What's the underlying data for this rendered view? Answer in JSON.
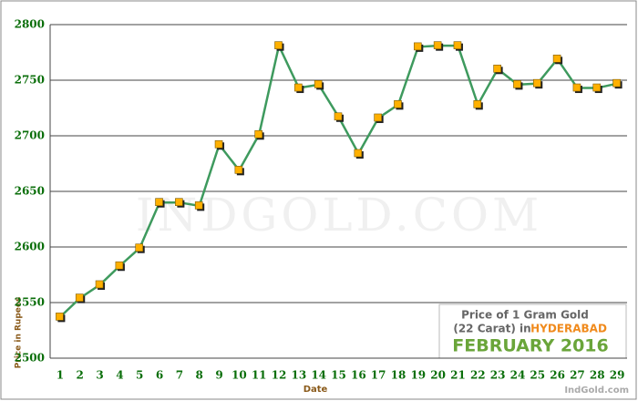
{
  "chart_data": {
    "type": "line",
    "categories": [
      "1",
      "2",
      "3",
      "4",
      "5",
      "6",
      "7",
      "8",
      "9",
      "10",
      "11",
      "12",
      "13",
      "14",
      "15",
      "16",
      "17",
      "18",
      "19",
      "20",
      "21",
      "22",
      "23",
      "24",
      "25",
      "26",
      "27",
      "28",
      "29"
    ],
    "values": [
      2537,
      2554,
      2566,
      2583,
      2599,
      2640,
      2640,
      2637,
      2692,
      2669,
      2701,
      2781,
      2743,
      2746,
      2717,
      2684,
      2716,
      2728,
      2780,
      2781,
      2781,
      2728,
      2760,
      2746,
      2747,
      2769,
      2743,
      2743,
      2747
    ],
    "color": "#3e9a5e",
    "marker_color": "#ffb000",
    "ylim": [
      2500,
      2800
    ],
    "yticks": [
      2500,
      2550,
      2600,
      2650,
      2700,
      2750,
      2800
    ],
    "grid": true,
    "xlabel": "Date",
    "ylabel": "Price in Rupees",
    "watermark": "INDGOLD.COM",
    "annotations": [
      "Price of 1 Gram Gold",
      "(22 Carat) in",
      "HYDERABAD",
      "FEBRUARY 2016"
    ],
    "source": "IndGold.com"
  }
}
